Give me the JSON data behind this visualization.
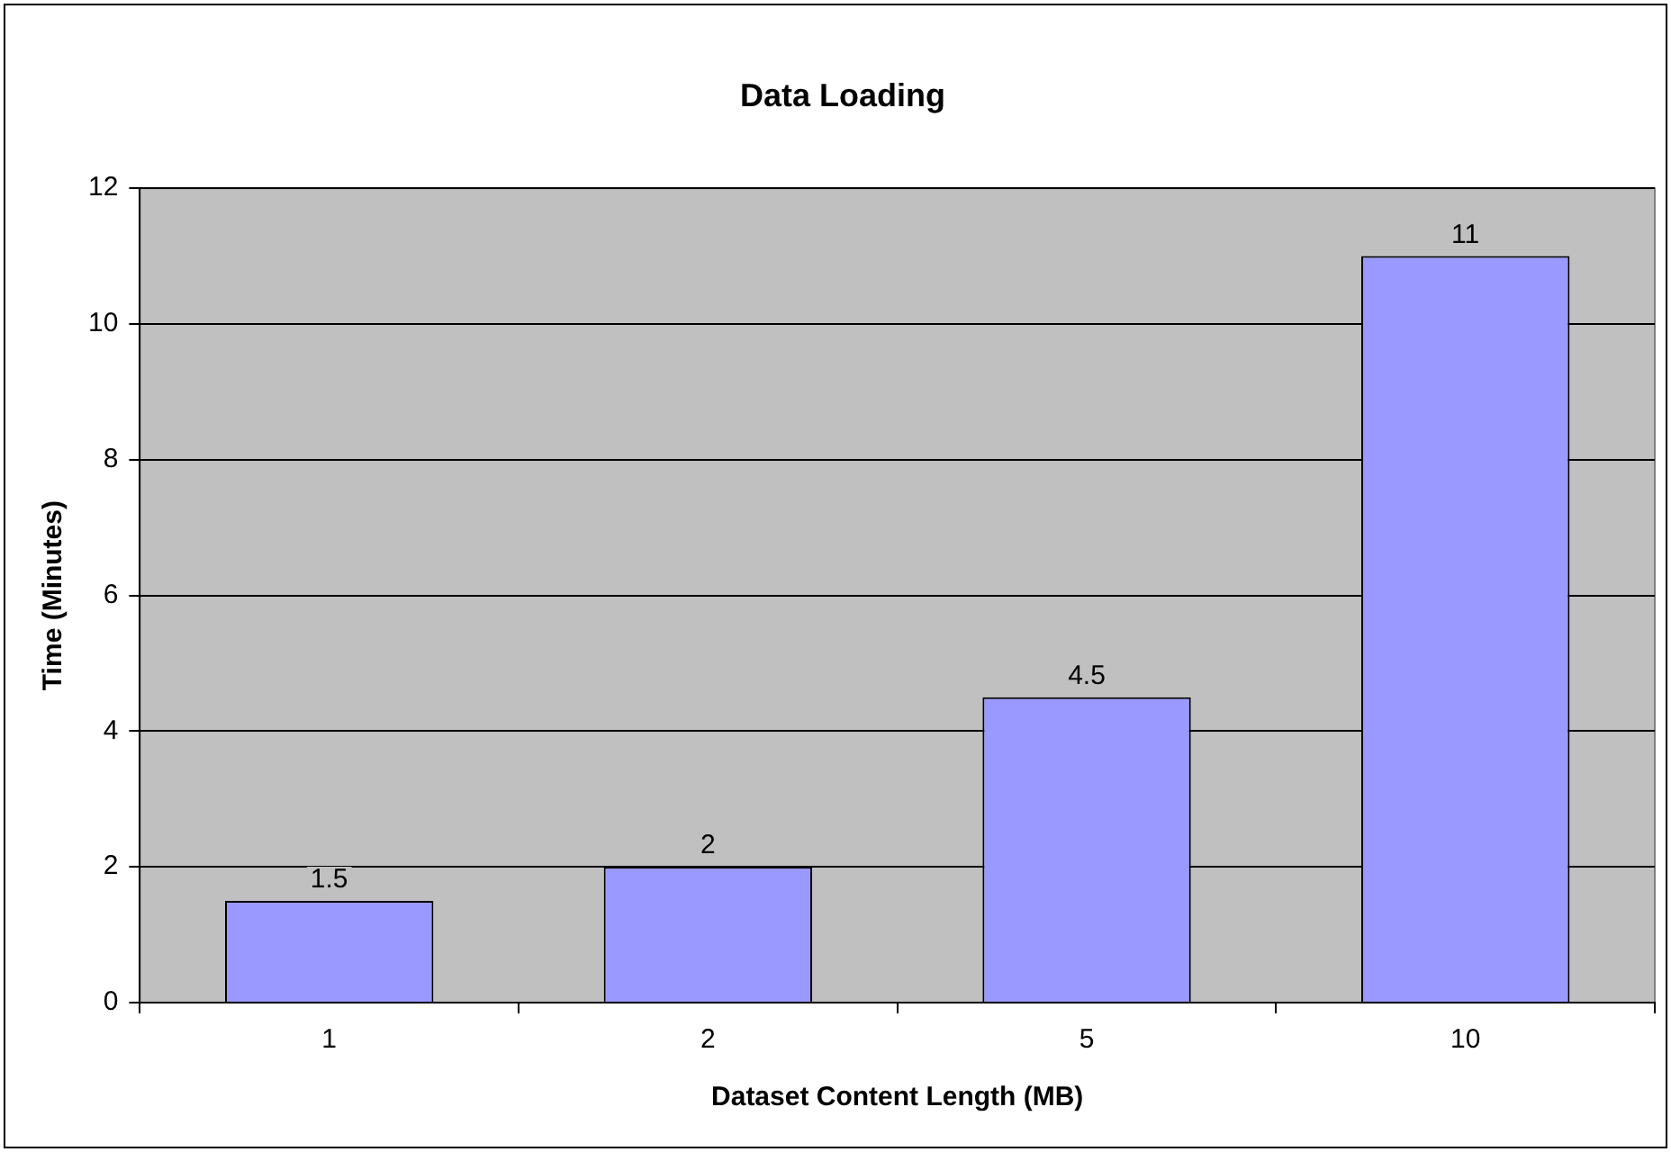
{
  "chart_data": {
    "type": "bar",
    "title": "Data Loading",
    "xlabel": "Dataset Content Length (MB)",
    "ylabel": "Time (Minutes)",
    "categories": [
      "1",
      "2",
      "5",
      "10"
    ],
    "values": [
      1.5,
      2,
      4.5,
      11
    ],
    "color": "#9999ff",
    "ylim": [
      0,
      12
    ],
    "yticks": [
      0,
      2,
      4,
      6,
      8,
      10,
      12
    ],
    "grid": "y",
    "data_labels": true,
    "legend": false
  }
}
